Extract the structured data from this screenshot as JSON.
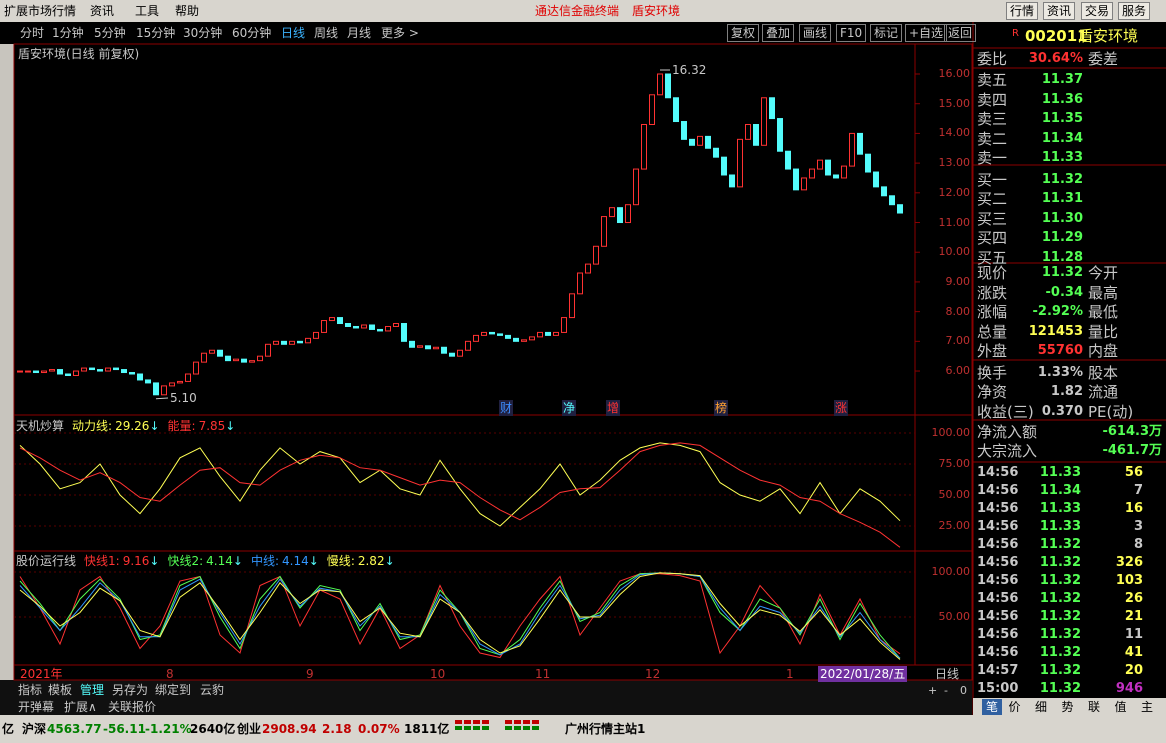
{
  "menu": {
    "items": [
      "扩展市场行情",
      "资讯",
      "工具",
      "帮助"
    ],
    "center": "通达信金融终端",
    "stock": "盾安环境",
    "right": [
      "行情",
      "资讯",
      "交易",
      "服务"
    ]
  },
  "periods": {
    "items": [
      "分时",
      "1分钟",
      "5分钟",
      "15分钟",
      "30分钟",
      "60分钟",
      "日线",
      "周线",
      "月线",
      "更多 >"
    ],
    "active": 6,
    "tools": [
      "复权",
      "叠加",
      "画线",
      "F10",
      "标记",
      "+自选",
      "返回"
    ]
  },
  "chart_data": [
    {
      "type": "candlestick",
      "title": "盾安环境(日线 前复权)",
      "color_up": "#ff3232",
      "color_down": "#54fcfc",
      "values": [
        6.0,
        6.0,
        5.95,
        6.0,
        6.05,
        5.9,
        5.85,
        6.0,
        6.1,
        6.05,
        6.0,
        6.1,
        6.05,
        5.95,
        5.9,
        5.7,
        5.6,
        5.2,
        5.5,
        5.6,
        5.65,
        5.9,
        6.3,
        6.6,
        6.7,
        6.5,
        6.35,
        6.4,
        6.3,
        6.35,
        6.5,
        6.9,
        7.0,
        6.9,
        7.0,
        6.95,
        7.1,
        7.3,
        7.7,
        7.8,
        7.6,
        7.5,
        7.45,
        7.55,
        7.4,
        7.35,
        7.5,
        7.6,
        7.0,
        6.8,
        6.85,
        6.75,
        6.8,
        6.6,
        6.5,
        6.7,
        7.0,
        7.2,
        7.3,
        7.25,
        7.2,
        7.1,
        7.0,
        7.05,
        7.15,
        7.3,
        7.2,
        7.3,
        7.8,
        8.6,
        9.3,
        9.6,
        10.2,
        11.2,
        11.5,
        11.0,
        11.6,
        12.8,
        14.3,
        15.3,
        16.0,
        15.2,
        14.4,
        13.8,
        13.6,
        13.9,
        13.5,
        13.2,
        12.6,
        12.2,
        13.8,
        14.3,
        13.6,
        15.2,
        14.5,
        13.4,
        12.8,
        12.1,
        12.5,
        12.8,
        13.1,
        12.6,
        12.5,
        12.9,
        14.0,
        13.3,
        12.7,
        12.2,
        11.9,
        11.6,
        11.32
      ],
      "ylim": [
        4.52,
        17.01
      ],
      "yticks": [
        {
          "value": 6,
          "label": "6.00"
        },
        {
          "value": 7,
          "label": "7.00"
        },
        {
          "value": 8,
          "label": "8.00"
        },
        {
          "value": 9,
          "label": "9.00"
        },
        {
          "value": 10,
          "label": "10.00"
        },
        {
          "value": 11,
          "label": "11.00"
        },
        {
          "value": 12,
          "label": "12.00"
        },
        {
          "value": 13,
          "label": "13.00"
        },
        {
          "value": 14,
          "label": "14.00"
        },
        {
          "value": 15,
          "label": "15.00"
        },
        {
          "value": 16,
          "label": "16.00"
        }
      ],
      "annotations": {
        "high": "16.32",
        "low": "5.10"
      },
      "markers": [
        "财",
        "净",
        "增",
        "榜",
        "涨"
      ]
    },
    {
      "type": "line",
      "title": "天机炒算",
      "ylim": [
        5.65,
        112.9
      ],
      "yticks": [
        {
          "value": 25,
          "label": "25.00"
        },
        {
          "value": 50,
          "label": "50.00"
        },
        {
          "value": 75,
          "label": "75.00"
        },
        {
          "value": 100,
          "label": "100.00"
        }
      ],
      "series": [
        {
          "name": "动力线",
          "separator": ":",
          "trend": "↓",
          "color": "#ffff54",
          "values": [
            90,
            75,
            55,
            60,
            75,
            50,
            35,
            55,
            80,
            88,
            65,
            45,
            70,
            88,
            75,
            85,
            80,
            60,
            70,
            55,
            50,
            78,
            55,
            35,
            25,
            40,
            55,
            75,
            50,
            62,
            78,
            88,
            92,
            90,
            85,
            60,
            50,
            45,
            55,
            35,
            60,
            35,
            55,
            45,
            29.26
          ]
        },
        {
          "name": "能量",
          "separator": ":",
          "trend": "↓",
          "color": "#ff3232",
          "values": [
            88,
            80,
            70,
            62,
            68,
            60,
            48,
            45,
            58,
            70,
            72,
            60,
            58,
            70,
            78,
            82,
            80,
            72,
            70,
            64,
            58,
            62,
            60,
            48,
            38,
            30,
            40,
            52,
            55,
            56,
            70,
            85,
            90,
            92,
            90,
            80,
            70,
            62,
            58,
            48,
            45,
            35,
            28,
            20,
            7.85
          ]
        }
      ]
    },
    {
      "type": "line",
      "title": "股价运行线",
      "ylim": [
        -3.3,
        122.2
      ],
      "yticks": [
        {
          "value": 50,
          "label": "50.00"
        },
        {
          "value": 100,
          "label": "100.00"
        }
      ],
      "series": [
        {
          "name": "快线1",
          "separator": ":",
          "trend": "↓",
          "color": "#ff3232",
          "values": [
            95,
            60,
            20,
            80,
            95,
            60,
            15,
            40,
            90,
            95,
            30,
            10,
            85,
            95,
            40,
            80,
            70,
            20,
            60,
            15,
            30,
            85,
            40,
            10,
            5,
            40,
            70,
            95,
            30,
            60,
            90,
            98,
            98,
            96,
            90,
            10,
            40,
            85,
            60,
            20,
            75,
            30,
            70,
            25,
            9.16
          ]
        },
        {
          "name": "快线2",
          "separator": ":",
          "trend": "↓",
          "color": "#54ff54",
          "values": [
            90,
            65,
            35,
            70,
            92,
            70,
            25,
            30,
            85,
            95,
            50,
            15,
            70,
            95,
            60,
            85,
            80,
            35,
            65,
            25,
            30,
            80,
            55,
            15,
            8,
            25,
            60,
            90,
            45,
            55,
            85,
            98,
            99,
            98,
            95,
            55,
            35,
            70,
            60,
            30,
            70,
            25,
            65,
            30,
            4.14
          ]
        },
        {
          "name": "中线",
          "separator": ":",
          "trend": "↓",
          "color": "#3296ff",
          "values": [
            85,
            60,
            35,
            60,
            88,
            68,
            28,
            28,
            80,
            92,
            55,
            20,
            62,
            92,
            62,
            82,
            78,
            40,
            62,
            28,
            28,
            75,
            55,
            20,
            8,
            20,
            55,
            85,
            48,
            52,
            80,
            97,
            99,
            98,
            95,
            60,
            35,
            62,
            55,
            32,
            62,
            28,
            55,
            25,
            4.14
          ]
        },
        {
          "name": "慢线",
          "separator": ":",
          "trend": "↓",
          "color": "#ffff54",
          "values": [
            80,
            62,
            40,
            55,
            82,
            68,
            35,
            28,
            72,
            88,
            58,
            25,
            55,
            88,
            65,
            80,
            78,
            45,
            60,
            32,
            28,
            70,
            55,
            25,
            10,
            18,
            48,
            80,
            50,
            50,
            75,
            95,
            99,
            98,
            96,
            65,
            40,
            58,
            52,
            34,
            58,
            30,
            48,
            22,
            2.82
          ]
        }
      ]
    }
  ],
  "xaxis": {
    "labels": [
      "2021年",
      "8",
      "9",
      "10",
      "11",
      "12",
      "1"
    ],
    "last_date": "2022/01/28/五",
    "period": "日线",
    "zoom": [
      "+",
      "-",
      "0"
    ]
  },
  "quote": {
    "flag": "R",
    "code": "002011",
    "name": "盾安环境",
    "wei_bi_label": "委比",
    "wei_bi": "30.64%",
    "wei_cha_label": "委差",
    "book": [
      {
        "label": "卖五",
        "price": "11.37"
      },
      {
        "label": "卖四",
        "price": "11.36"
      },
      {
        "label": "卖三",
        "price": "11.35"
      },
      {
        "label": "卖二",
        "price": "11.34"
      },
      {
        "label": "卖一",
        "price": "11.33"
      },
      {
        "label": "买一",
        "price": "11.32"
      },
      {
        "label": "买二",
        "price": "11.31"
      },
      {
        "label": "买三",
        "price": "11.30"
      },
      {
        "label": "买四",
        "price": "11.29"
      },
      {
        "label": "买五",
        "price": "11.28"
      }
    ],
    "stats": [
      [
        "现价",
        "11.32",
        "今开"
      ],
      [
        "涨跌",
        "-0.34",
        "最高"
      ],
      [
        "涨幅",
        "-2.92%",
        "最低"
      ],
      [
        "总量",
        "121453",
        "量比"
      ],
      [
        "外盘",
        "55760",
        "内盘"
      ],
      [
        "换手",
        "1.33%",
        "股本"
      ],
      [
        "净资",
        "1.82",
        "流通"
      ],
      [
        "收益(三)",
        "0.370",
        "PE(动)"
      ]
    ],
    "flow": [
      [
        "净流入额",
        "-614.3万"
      ],
      [
        "大宗流入",
        "-461.7万"
      ]
    ],
    "trades": [
      [
        "14:56",
        "11.33",
        "56"
      ],
      [
        "14:56",
        "11.34",
        "7"
      ],
      [
        "14:56",
        "11.33",
        "16"
      ],
      [
        "14:56",
        "11.33",
        "3"
      ],
      [
        "14:56",
        "11.32",
        "8"
      ],
      [
        "14:56",
        "11.32",
        "326"
      ],
      [
        "14:56",
        "11.32",
        "103"
      ],
      [
        "14:56",
        "11.32",
        "26"
      ],
      [
        "14:56",
        "11.32",
        "21"
      ],
      [
        "14:56",
        "11.32",
        "11"
      ],
      [
        "14:56",
        "11.32",
        "41"
      ],
      [
        "14:57",
        "11.32",
        "20"
      ],
      [
        "15:00",
        "11.32",
        "946"
      ]
    ],
    "tabs": [
      "笔",
      "价",
      "细",
      "势",
      "联",
      "值",
      "主"
    ]
  },
  "bottom": {
    "tabs": [
      "指标",
      "模板",
      "管理",
      "另存为",
      "绑定到",
      "云豹"
    ],
    "active": 2,
    "tabs2": [
      "开弹幕",
      "扩展∧",
      "关联报价"
    ]
  },
  "status": {
    "items": [
      "亿",
      "沪深",
      "4563.77",
      "-56.11",
      "-1.21%",
      "2640亿",
      "创业",
      "2908.94",
      "2.18",
      "0.07%",
      "1811亿",
      "广州行情主站1"
    ]
  }
}
